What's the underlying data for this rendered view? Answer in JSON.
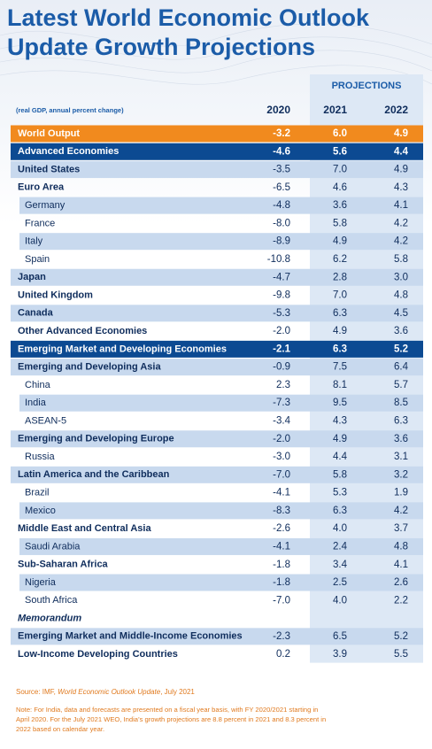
{
  "header": {
    "title_lines": [
      "Latest World Economic Outlook",
      "Update Growth Projections"
    ]
  },
  "table": {
    "group_header": "PROJECTIONS",
    "caption": "(real GDP, annual percent change)",
    "columns": [
      "2020",
      "2021",
      "2022"
    ],
    "rows": [
      {
        "label": "World Output",
        "values": [
          "-3.2",
          "6.0",
          "4.9"
        ]
      },
      {
        "label": "Advanced Economies",
        "values": [
          "-4.6",
          "5.6",
          "4.4"
        ]
      },
      {
        "label": "United States",
        "values": [
          "-3.5",
          "7.0",
          "4.9"
        ]
      },
      {
        "label": "Euro Area",
        "values": [
          "-6.5",
          "4.6",
          "4.3"
        ]
      },
      {
        "label": "Germany",
        "values": [
          "-4.8",
          "3.6",
          "4.1"
        ]
      },
      {
        "label": "France",
        "values": [
          "-8.0",
          "5.8",
          "4.2"
        ]
      },
      {
        "label": "Italy",
        "values": [
          "-8.9",
          "4.9",
          "4.2"
        ]
      },
      {
        "label": "Spain",
        "values": [
          "-10.8",
          "6.2",
          "5.8"
        ]
      },
      {
        "label": "Japan",
        "values": [
          "-4.7",
          "2.8",
          "3.0"
        ]
      },
      {
        "label": "United Kingdom",
        "values": [
          "-9.8",
          "7.0",
          "4.8"
        ]
      },
      {
        "label": "Canada",
        "values": [
          "-5.3",
          "6.3",
          "4.5"
        ]
      },
      {
        "label": "Other Advanced Economies",
        "values": [
          "-2.0",
          "4.9",
          "3.6"
        ]
      },
      {
        "label": "Emerging Market and Developing Economies",
        "values": [
          "-2.1",
          "6.3",
          "5.2"
        ]
      },
      {
        "label": "Emerging and Developing Asia",
        "values": [
          "-0.9",
          "7.5",
          "6.4"
        ]
      },
      {
        "label": "China",
        "values": [
          "2.3",
          "8.1",
          "5.7"
        ]
      },
      {
        "label": "India",
        "values": [
          "-7.3",
          "9.5",
          "8.5"
        ]
      },
      {
        "label": "ASEAN-5",
        "values": [
          "-3.4",
          "4.3",
          "6.3"
        ]
      },
      {
        "label": "Emerging and Developing Europe",
        "values": [
          "-2.0",
          "4.9",
          "3.6"
        ]
      },
      {
        "label": "Russia",
        "values": [
          "-3.0",
          "4.4",
          "3.1"
        ]
      },
      {
        "label": "Latin America and the Caribbean",
        "values": [
          "-7.0",
          "5.8",
          "3.2"
        ]
      },
      {
        "label": "Brazil",
        "values": [
          "-4.1",
          "5.3",
          "1.9"
        ]
      },
      {
        "label": "Mexico",
        "values": [
          "-8.3",
          "6.3",
          "4.2"
        ]
      },
      {
        "label": "Middle East and Central Asia",
        "values": [
          "-2.6",
          "4.0",
          "3.7"
        ]
      },
      {
        "label": "Saudi Arabia",
        "values": [
          "-4.1",
          "2.4",
          "4.8"
        ]
      },
      {
        "label": "Sub-Saharan Africa",
        "values": [
          "-1.8",
          "3.4",
          "4.1"
        ]
      },
      {
        "label": "Nigeria",
        "values": [
          "-1.8",
          "2.5",
          "2.6"
        ]
      },
      {
        "label": "South Africa",
        "values": [
          "-7.0",
          "4.0",
          "2.2"
        ]
      },
      {
        "label": "Memorandum"
      },
      {
        "label": "Emerging Market and Middle-Income Economies",
        "values": [
          "-2.3",
          "6.5",
          "5.2"
        ]
      },
      {
        "label": "Low-Income Developing Countries",
        "values": [
          "0.2",
          "3.9",
          "5.5"
        ]
      }
    ]
  },
  "footer": {
    "source": {
      "prefix": "Source: IMF, ",
      "title": "World Economic Outlook Update",
      "suffix": ", July 2021"
    },
    "note_lines": [
      "Note: For India, data and forecasts are presented on a fiscal year basis, with FY 2020/2021 starting in",
      "April 2020. For the July 2021 WEO, India’s growth projections are 8.8 percent in 2021 and 8.3 percent in",
      "2022 based on calendar year."
    ]
  }
}
